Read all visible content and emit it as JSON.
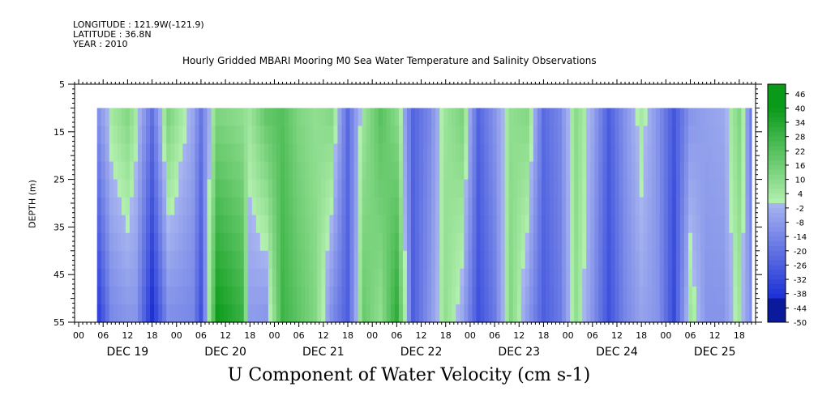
{
  "header": {
    "longitude": "LONGITUDE : 121.9W(-121.9)",
    "latitude": "LATITUDE : 36.8N",
    "year": "YEAR : 2010",
    "title": "Hourly Gridded MBARI Mooring M0 Sea Water Temperature and Salinity Observations"
  },
  "chart_data": {
    "type": "heatmap",
    "title": "U Component of Water Velocity (cm s-1)",
    "ylabel": "DEPTH (m)",
    "ylim": [
      55,
      5
    ],
    "data_depth_range": [
      10,
      55
    ],
    "y_ticks": [
      5,
      15,
      25,
      35,
      45,
      55
    ],
    "x_hour_ticks": [
      "00",
      "06",
      "12",
      "18",
      "00",
      "06",
      "12",
      "18",
      "00",
      "06",
      "12",
      "18",
      "00",
      "06",
      "12",
      "18",
      "00",
      "06",
      "12",
      "18",
      "00",
      "06",
      "12",
      "18",
      "00",
      "06",
      "12",
      "18"
    ],
    "x_day_labels": [
      "DEC 19",
      "DEC 20",
      "DEC 21",
      "DEC 22",
      "DEC 23",
      "DEC 24",
      "DEC 25"
    ],
    "x_range_hours": [
      -1,
      166
    ],
    "data_time_range_hours": [
      4.5,
      165
    ],
    "colorbar_labels": [
      "46",
      "40",
      "34",
      "28",
      "22",
      "16",
      "10",
      "4",
      "-2",
      "-8",
      "-14",
      "-20",
      "-26",
      "-32",
      "-38",
      "-44",
      "-50"
    ],
    "colorbar_range": [
      -50,
      50
    ],
    "colors": {
      "negative_strong": "#1a2fd6",
      "negative_weak": "#a9b6f0",
      "positive_weak": "#b4f0b0",
      "positive_strong": "#0a9a1a"
    },
    "u_velocity_by_hour": [
      [
        4,
        -14,
        -42
      ],
      [
        8,
        4,
        -14
      ],
      [
        12,
        12,
        -10
      ],
      [
        14,
        4,
        -10
      ],
      [
        18,
        -20,
        -40
      ],
      [
        22,
        14,
        -12
      ],
      [
        28,
        -4,
        -14
      ],
      [
        30,
        -18,
        -30
      ],
      [
        34,
        12,
        40
      ],
      [
        40,
        8,
        30
      ],
      [
        42,
        6,
        -8
      ],
      [
        46,
        20,
        -10
      ],
      [
        50,
        22,
        28
      ],
      [
        54,
        12,
        20
      ],
      [
        58,
        8,
        12
      ],
      [
        62,
        12,
        -12
      ],
      [
        66,
        -22,
        -26
      ],
      [
        70,
        6,
        18
      ],
      [
        74,
        22,
        8
      ],
      [
        78,
        10,
        32
      ],
      [
        82,
        -24,
        -26
      ],
      [
        86,
        -14,
        -10
      ],
      [
        90,
        6,
        8
      ],
      [
        94,
        14,
        -4
      ],
      [
        98,
        -24,
        -30
      ],
      [
        102,
        -10,
        -18
      ],
      [
        106,
        8,
        12
      ],
      [
        110,
        12,
        -8
      ],
      [
        114,
        -22,
        -26
      ],
      [
        118,
        -14,
        -18
      ],
      [
        122,
        10,
        8
      ],
      [
        126,
        -4,
        -10
      ],
      [
        130,
        -26,
        -30
      ],
      [
        134,
        -10,
        -14
      ],
      [
        138,
        4,
        -6
      ],
      [
        142,
        -10,
        -10
      ],
      [
        146,
        -28,
        -32
      ],
      [
        150,
        -10,
        6
      ],
      [
        154,
        -6,
        -10
      ],
      [
        158,
        -4,
        -10
      ],
      [
        162,
        12,
        4
      ],
      [
        165,
        -18,
        -12
      ]
    ]
  }
}
